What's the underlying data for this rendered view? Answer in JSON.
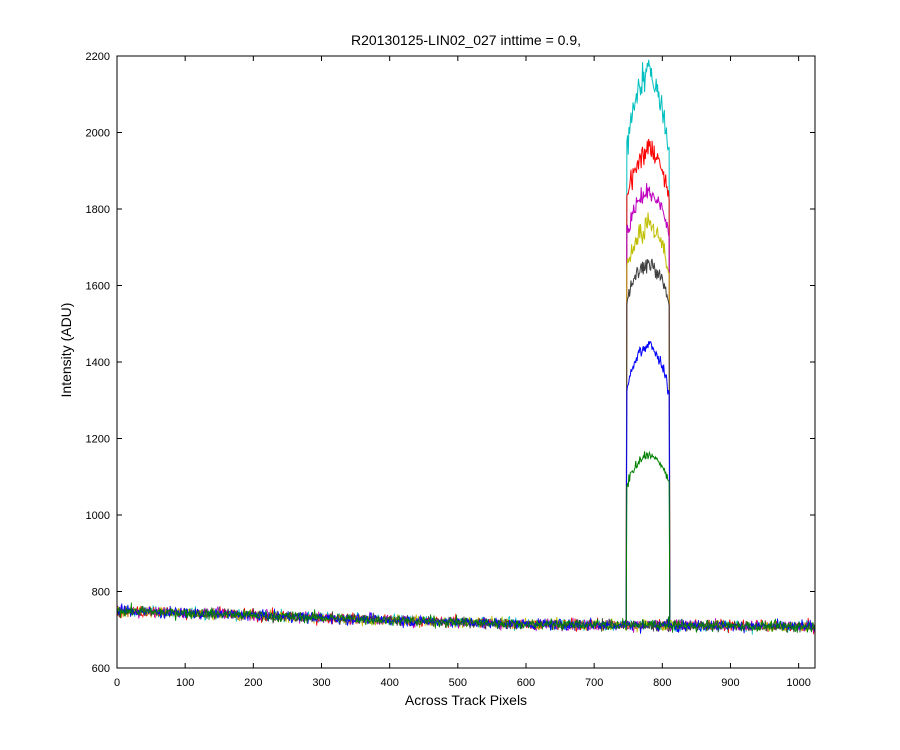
{
  "chart_data": {
    "type": "line",
    "title": "R20130125-LIN02_027 inttime = 0.9,",
    "xlabel": "Across Track Pixels",
    "ylabel": "Intensity (ADU)",
    "xlim": [
      0,
      1024
    ],
    "ylim": [
      600,
      2200
    ],
    "xticks": [
      0,
      100,
      200,
      300,
      400,
      500,
      600,
      700,
      800,
      900,
      1000
    ],
    "yticks": [
      600,
      800,
      1000,
      1200,
      1400,
      1600,
      1800,
      2000,
      2200
    ],
    "grid": false,
    "legend": "none",
    "background_trend": {
      "x": [
        0,
        200,
        400,
        600,
        750,
        810,
        1024
      ],
      "y": [
        750,
        738,
        725,
        715,
        712,
        712,
        708
      ]
    },
    "spot_region": {
      "x_start": 748,
      "x_end": 810
    },
    "series": [
      {
        "color": "#00bfbf",
        "profile": {
          "x": [
            748,
            755,
            765,
            780,
            795,
            805,
            810
          ],
          "y": [
            1960,
            2050,
            2120,
            2160,
            2100,
            2010,
            1950
          ]
        }
      },
      {
        "color": "#ff0000",
        "profile": {
          "x": [
            748,
            755,
            765,
            780,
            795,
            805,
            810
          ],
          "y": [
            1830,
            1880,
            1920,
            1970,
            1930,
            1870,
            1820
          ]
        }
      },
      {
        "color": "#bf00bf",
        "profile": {
          "x": [
            748,
            755,
            765,
            780,
            795,
            805,
            810
          ],
          "y": [
            1740,
            1780,
            1820,
            1840,
            1810,
            1770,
            1730
          ]
        }
      },
      {
        "color": "#bfbf00",
        "profile": {
          "x": [
            748,
            755,
            765,
            780,
            795,
            805,
            810
          ],
          "y": [
            1650,
            1690,
            1730,
            1760,
            1730,
            1680,
            1640
          ]
        }
      },
      {
        "color": "#404040",
        "profile": {
          "x": [
            748,
            755,
            765,
            780,
            795,
            805,
            810
          ],
          "y": [
            1560,
            1600,
            1640,
            1660,
            1630,
            1590,
            1550
          ]
        }
      },
      {
        "color": "#0000ff",
        "profile": {
          "x": [
            748,
            755,
            765,
            780,
            795,
            805,
            810
          ],
          "y": [
            1330,
            1380,
            1420,
            1450,
            1410,
            1360,
            1320
          ]
        }
      },
      {
        "color": "#008000",
        "profile": {
          "x": [
            748,
            755,
            765,
            780,
            795,
            805,
            810
          ],
          "y": [
            1080,
            1110,
            1140,
            1160,
            1140,
            1110,
            1080
          ]
        }
      }
    ]
  }
}
